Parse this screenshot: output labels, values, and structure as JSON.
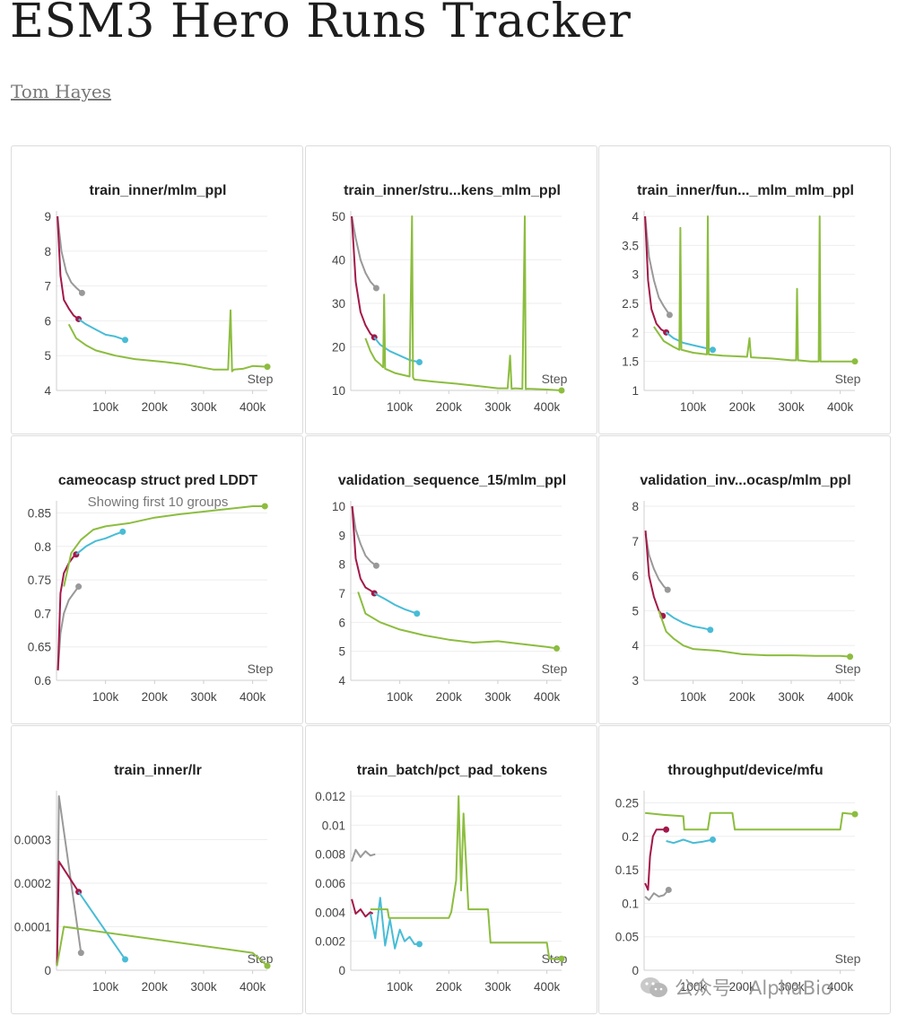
{
  "page": {
    "title": "ESM3 Hero Runs Tracker",
    "author": "Tom Hayes",
    "watermark": "公众号 · AlphaBio"
  },
  "colors": {
    "gray": "#999999",
    "crimson": "#a3184a",
    "cyan": "#48bcd6",
    "green": "#8cbd3f"
  },
  "x_label": "Step",
  "chart_data": [
    {
      "type": "line",
      "title": "train_inner/mlm_ppl",
      "xlabel": "Step",
      "xlim": [
        0,
        430000
      ],
      "ylim": [
        4,
        9
      ],
      "x_ticks": [
        "100k",
        "200k",
        "300k",
        "400k"
      ],
      "y_ticks": [
        "4",
        "5",
        "6",
        "7",
        "8",
        "9"
      ],
      "series": [
        {
          "name": "gray",
          "x": [
            2000,
            10000,
            20000,
            30000,
            40000,
            52000
          ],
          "y": [
            9,
            8.0,
            7.4,
            7.1,
            6.95,
            6.8
          ],
          "end_marker": true
        },
        {
          "name": "crimson",
          "x": [
            2000,
            8000,
            15000,
            25000,
            35000,
            45000
          ],
          "y": [
            9,
            7.3,
            6.6,
            6.35,
            6.15,
            6.05
          ],
          "end_marker": true
        },
        {
          "name": "cyan",
          "x": [
            45000,
            60000,
            80000,
            100000,
            120000,
            140000
          ],
          "y": [
            6.05,
            5.9,
            5.75,
            5.6,
            5.55,
            5.45
          ],
          "end_marker": true
        },
        {
          "name": "green",
          "x": [
            25000,
            40000,
            60000,
            80000,
            120000,
            160000,
            220000,
            260000,
            300000,
            320000,
            350000,
            355000,
            358000,
            362000,
            380000,
            400000,
            430000
          ],
          "y": [
            5.9,
            5.5,
            5.3,
            5.15,
            5.0,
            4.9,
            4.82,
            4.75,
            4.65,
            4.6,
            4.6,
            6.3,
            4.55,
            4.6,
            4.62,
            4.7,
            4.68
          ],
          "end_marker": true
        }
      ]
    },
    {
      "type": "line",
      "title": "train_inner/stru...kens_mlm_ppl",
      "xlabel": "Step",
      "xlim": [
        0,
        430000
      ],
      "ylim": [
        10,
        50
      ],
      "x_ticks": [
        "100k",
        "200k",
        "300k",
        "400k"
      ],
      "y_ticks": [
        "10",
        "20",
        "30",
        "40",
        "50"
      ],
      "series": [
        {
          "name": "gray",
          "x": [
            2000,
            10000,
            20000,
            30000,
            40000,
            52000
          ],
          "y": [
            50,
            45,
            40,
            37,
            35,
            33.5
          ],
          "end_marker": true
        },
        {
          "name": "crimson",
          "x": [
            2000,
            10000,
            20000,
            30000,
            40000,
            48000
          ],
          "y": [
            50,
            35,
            28,
            25,
            23,
            22.2
          ],
          "end_marker": true
        },
        {
          "name": "cyan",
          "x": [
            48000,
            60000,
            80000,
            100000,
            120000,
            140000
          ],
          "y": [
            22.2,
            20.5,
            19,
            18,
            17,
            16.5
          ],
          "end_marker": true
        },
        {
          "name": "green",
          "x": [
            30000,
            40000,
            50000,
            60000,
            66000,
            68000,
            70000,
            90000,
            120000,
            125000,
            127000,
            130000,
            170000,
            220000,
            260000,
            300000,
            320000,
            325000,
            328000,
            335000,
            350000,
            355000,
            357000,
            360000,
            380000,
            400000,
            430000
          ],
          "y": [
            22,
            19,
            17,
            16,
            15.3,
            32,
            15,
            14,
            13.2,
            50,
            13,
            12.5,
            12,
            11.5,
            11,
            10.5,
            10.5,
            18,
            10.4,
            10.5,
            10.4,
            50,
            10.3,
            10.4,
            10.3,
            10.2,
            10
          ],
          "end_marker": true
        }
      ],
      "annotations": [
        "truncated title text"
      ]
    },
    {
      "type": "line",
      "title": "train_inner/fun..._mlm_mlm_ppl",
      "xlabel": "Step",
      "xlim": [
        0,
        430000
      ],
      "ylim": [
        1,
        4
      ],
      "x_ticks": [
        "100k",
        "200k",
        "300k",
        "400k"
      ],
      "y_ticks": [
        "1",
        "1.5",
        "2",
        "2.5",
        "3",
        "3.5",
        "4"
      ],
      "series": [
        {
          "name": "gray",
          "x": [
            2000,
            10000,
            20000,
            30000,
            40000,
            52000
          ],
          "y": [
            4,
            3.3,
            2.9,
            2.6,
            2.45,
            2.3
          ],
          "end_marker": true
        },
        {
          "name": "crimson",
          "x": [
            2000,
            8000,
            15000,
            25000,
            35000,
            45000
          ],
          "y": [
            4,
            2.9,
            2.4,
            2.15,
            2.05,
            2.0
          ],
          "end_marker": true
        },
        {
          "name": "cyan",
          "x": [
            45000,
            60000,
            80000,
            100000,
            120000,
            140000
          ],
          "y": [
            2.0,
            1.9,
            1.82,
            1.78,
            1.74,
            1.7
          ],
          "end_marker": true
        },
        {
          "name": "green",
          "x": [
            20000,
            40000,
            60000,
            72000,
            74000,
            76000,
            100000,
            128000,
            130000,
            132000,
            160000,
            210000,
            215000,
            218000,
            260000,
            300000,
            310000,
            312000,
            314000,
            340000,
            356000,
            358000,
            360000,
            400000,
            430000
          ],
          "y": [
            2.1,
            1.85,
            1.75,
            1.7,
            3.8,
            1.7,
            1.65,
            1.62,
            4,
            1.62,
            1.6,
            1.58,
            1.9,
            1.57,
            1.55,
            1.52,
            1.52,
            2.75,
            1.52,
            1.5,
            1.5,
            4,
            1.5,
            1.5,
            1.5
          ],
          "end_marker": true
        }
      ]
    },
    {
      "type": "line",
      "title": "cameocasp struct pred LDDT",
      "subtitle": "Showing first 10 groups",
      "xlabel": "Step",
      "xlim": [
        0,
        430000
      ],
      "ylim": [
        0.6,
        0.86
      ],
      "x_ticks": [
        "100k",
        "200k",
        "300k",
        "400k"
      ],
      "y_ticks": [
        "0.6",
        "0.65",
        "0.7",
        "0.75",
        "0.8",
        "0.85"
      ],
      "series": [
        {
          "name": "gray",
          "x": [
            3000,
            8000,
            15000,
            25000,
            35000,
            45000
          ],
          "y": [
            0.615,
            0.67,
            0.7,
            0.72,
            0.73,
            0.74
          ],
          "end_marker": true
        },
        {
          "name": "crimson",
          "x": [
            3000,
            8000,
            15000,
            25000,
            35000,
            40000
          ],
          "y": [
            0.615,
            0.73,
            0.76,
            0.775,
            0.785,
            0.788
          ],
          "end_marker": true
        },
        {
          "name": "cyan",
          "x": [
            40000,
            60000,
            80000,
            100000,
            120000,
            135000
          ],
          "y": [
            0.788,
            0.8,
            0.808,
            0.812,
            0.818,
            0.822
          ],
          "end_marker": true
        },
        {
          "name": "green",
          "x": [
            15000,
            30000,
            50000,
            75000,
            100000,
            150000,
            200000,
            250000,
            300000,
            350000,
            400000,
            425000
          ],
          "y": [
            0.74,
            0.79,
            0.81,
            0.825,
            0.83,
            0.835,
            0.843,
            0.848,
            0.852,
            0.856,
            0.862,
            0.864
          ],
          "end_marker": true
        }
      ]
    },
    {
      "type": "line",
      "title": "validation_sequence_15/mlm_ppl",
      "xlabel": "Step",
      "xlim": [
        0,
        430000
      ],
      "ylim": [
        4,
        10
      ],
      "x_ticks": [
        "100k",
        "200k",
        "300k",
        "400k"
      ],
      "y_ticks": [
        "4",
        "5",
        "6",
        "7",
        "8",
        "9",
        "10"
      ],
      "series": [
        {
          "name": "gray",
          "x": [
            3000,
            10000,
            20000,
            30000,
            40000,
            52000
          ],
          "y": [
            10,
            9.2,
            8.7,
            8.3,
            8.1,
            7.95
          ],
          "end_marker": true
        },
        {
          "name": "crimson",
          "x": [
            3000,
            10000,
            20000,
            30000,
            40000,
            48000
          ],
          "y": [
            10,
            8.2,
            7.5,
            7.2,
            7.1,
            7.0
          ],
          "end_marker": true
        },
        {
          "name": "cyan",
          "x": [
            48000,
            70000,
            90000,
            110000,
            135000
          ],
          "y": [
            7.0,
            6.8,
            6.6,
            6.45,
            6.3
          ],
          "end_marker": true
        },
        {
          "name": "green",
          "x": [
            15000,
            30000,
            60000,
            100000,
            150000,
            200000,
            250000,
            300000,
            350000,
            400000,
            420000
          ],
          "y": [
            7.05,
            6.3,
            6.0,
            5.75,
            5.55,
            5.4,
            5.3,
            5.35,
            5.25,
            5.15,
            5.1
          ],
          "end_marker": true
        }
      ]
    },
    {
      "type": "line",
      "title": "validation_inv...ocasp/mlm_ppl",
      "xlabel": "Step",
      "xlim": [
        0,
        430000
      ],
      "ylim": [
        3,
        8
      ],
      "x_ticks": [
        "100k",
        "200k",
        "300k",
        "400k"
      ],
      "y_ticks": [
        "3",
        "4",
        "5",
        "6",
        "7",
        "8"
      ],
      "series": [
        {
          "name": "gray",
          "x": [
            3000,
            10000,
            20000,
            30000,
            40000,
            48000
          ],
          "y": [
            7.2,
            6.6,
            6.2,
            5.9,
            5.7,
            5.6
          ],
          "end_marker": true
        },
        {
          "name": "crimson",
          "x": [
            3000,
            10000,
            20000,
            30000,
            38000
          ],
          "y": [
            7.3,
            6.0,
            5.4,
            5.0,
            4.85
          ],
          "end_marker": true
        },
        {
          "name": "cyan",
          "x": [
            45000,
            60000,
            80000,
            100000,
            120000,
            135000
          ],
          "y": [
            4.95,
            4.8,
            4.65,
            4.55,
            4.5,
            4.45
          ],
          "end_marker": true
        },
        {
          "name": "green",
          "x": [
            30000,
            45000,
            60000,
            80000,
            100000,
            150000,
            200000,
            250000,
            300000,
            350000,
            400000,
            420000
          ],
          "y": [
            5.0,
            4.4,
            4.2,
            4.0,
            3.9,
            3.85,
            3.75,
            3.72,
            3.72,
            3.7,
            3.7,
            3.68
          ],
          "end_marker": true
        }
      ]
    },
    {
      "type": "line",
      "title": "train_inner/lr",
      "xlabel": "Step",
      "xlim": [
        0,
        430000
      ],
      "ylim": [
        0,
        0.0004
      ],
      "x_ticks": [
        "100k",
        "200k",
        "300k",
        "400k"
      ],
      "y_ticks": [
        "0",
        "0.0001",
        "0.0002",
        "0.0003"
      ],
      "series": [
        {
          "name": "gray",
          "x": [
            1000,
            5000,
            50000
          ],
          "y": [
            1e-05,
            0.0004,
            4e-05
          ],
          "end_marker": true
        },
        {
          "name": "crimson",
          "x": [
            1000,
            5000,
            45000
          ],
          "y": [
            1e-05,
            0.00025,
            0.00018
          ],
          "end_marker": true
        },
        {
          "name": "cyan",
          "x": [
            45000,
            140000
          ],
          "y": [
            0.00018,
            2.5e-05
          ],
          "end_marker": true
        },
        {
          "name": "green",
          "x": [
            1000,
            15000,
            400000,
            430000
          ],
          "y": [
            1e-05,
            0.0001,
            4e-05,
            1e-05
          ],
          "end_marker": true
        }
      ]
    },
    {
      "type": "line",
      "title": "train_batch/pct_pad_tokens",
      "xlabel": "Step",
      "xlim": [
        0,
        430000
      ],
      "ylim": [
        0,
        0.012
      ],
      "x_ticks": [
        "100k",
        "200k",
        "300k",
        "400k"
      ],
      "y_ticks": [
        "0",
        "0.002",
        "0.004",
        "0.006",
        "0.008",
        "0.01",
        "0.012"
      ],
      "series": [
        {
          "name": "gray",
          "x": [
            2000,
            10000,
            20000,
            30000,
            40000,
            50000
          ],
          "y": [
            0.0075,
            0.0083,
            0.0078,
            0.0082,
            0.0079,
            0.008
          ]
        },
        {
          "name": "crimson",
          "x": [
            2000,
            10000,
            20000,
            30000,
            40000,
            45000
          ],
          "y": [
            0.0049,
            0.0039,
            0.0042,
            0.0037,
            0.004,
            0.0039
          ]
        },
        {
          "name": "cyan",
          "x": [
            40000,
            50000,
            60000,
            70000,
            80000,
            90000,
            100000,
            110000,
            120000,
            130000,
            140000
          ],
          "y": [
            0.0039,
            0.0022,
            0.005,
            0.0017,
            0.0035,
            0.0015,
            0.0028,
            0.002,
            0.0023,
            0.0018,
            0.0018
          ],
          "end_marker": true
        },
        {
          "name": "green",
          "x": [
            40000,
            75000,
            78000,
            200000,
            205000,
            215000,
            220000,
            225000,
            230000,
            240000,
            280000,
            285000,
            400000,
            405000,
            430000
          ],
          "y": [
            0.0042,
            0.0042,
            0.0036,
            0.0036,
            0.004,
            0.0062,
            0.012,
            0.0055,
            0.0108,
            0.0042,
            0.0042,
            0.0019,
            0.0019,
            0.0008,
            0.0008
          ],
          "end_marker": true
        }
      ]
    },
    {
      "type": "line",
      "title": "throughput/device/mfu",
      "xlabel": "Step",
      "xlim": [
        0,
        430000
      ],
      "ylim": [
        0,
        0.26
      ],
      "x_ticks": [
        "100k",
        "200k",
        "300k",
        "400k"
      ],
      "y_ticks": [
        "0",
        "0.05",
        "0.1",
        "0.15",
        "0.2",
        "0.25"
      ],
      "series": [
        {
          "name": "gray",
          "x": [
            2000,
            10000,
            20000,
            30000,
            40000,
            50000
          ],
          "y": [
            0.11,
            0.105,
            0.115,
            0.11,
            0.112,
            0.12
          ],
          "end_marker": true
        },
        {
          "name": "crimson",
          "x": [
            2000,
            8000,
            12000,
            18000,
            25000,
            35000,
            45000
          ],
          "y": [
            0.13,
            0.12,
            0.17,
            0.2,
            0.21,
            0.21,
            0.21
          ],
          "end_marker": true
        },
        {
          "name": "cyan",
          "x": [
            45000,
            60000,
            80000,
            100000,
            120000,
            140000
          ],
          "y": [
            0.193,
            0.19,
            0.195,
            0.19,
            0.192,
            0.195
          ],
          "end_marker": true
        },
        {
          "name": "green",
          "x": [
            2000,
            40000,
            80000,
            82000,
            130000,
            135000,
            180000,
            185000,
            200000,
            205000,
            400000,
            405000,
            430000
          ],
          "y": [
            0.235,
            0.232,
            0.23,
            0.21,
            0.21,
            0.235,
            0.235,
            0.21,
            0.21,
            0.21,
            0.21,
            0.235,
            0.233
          ],
          "end_marker": true
        }
      ]
    }
  ]
}
